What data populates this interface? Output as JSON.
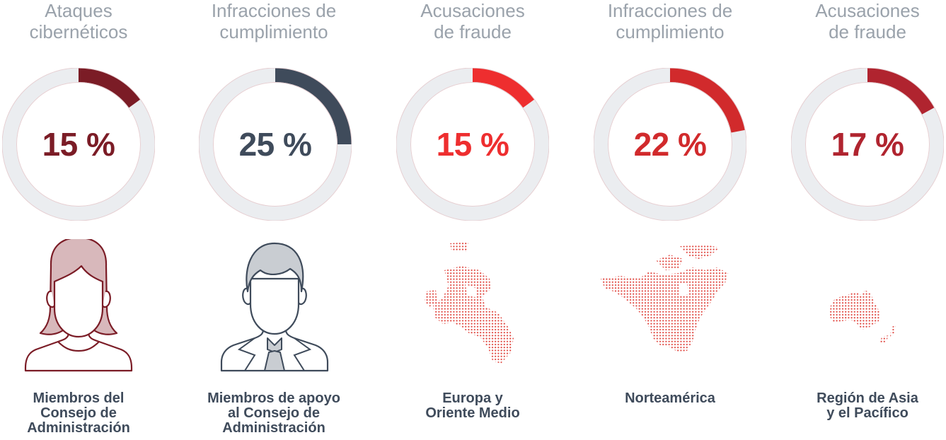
{
  "chart_data": [
    {
      "type": "pie",
      "title": "Ataques\ncibernéticos",
      "value_label": "15 %",
      "values": [
        15,
        85
      ],
      "category": "Miembros del\nConsejo de\nAdministración",
      "color": "#7b1c26"
    },
    {
      "type": "pie",
      "title": "Infracciones de\ncumplimiento",
      "value_label": "25 %",
      "values": [
        25,
        75
      ],
      "category": "Miembros de apoyo\nal Consejo de\nAdministración",
      "color": "#3f4b5b"
    },
    {
      "type": "pie",
      "title": "Acusaciones\nde fraude",
      "value_label": "15 %",
      "values": [
        15,
        85
      ],
      "category": "Europa y\nOriente Medio",
      "color": "#ee2e2f"
    },
    {
      "type": "pie",
      "title": "Infracciones de\ncumplimiento",
      "value_label": "22 %",
      "values": [
        22,
        78
      ],
      "category": "Norteamérica",
      "color": "#d12a2c"
    },
    {
      "type": "pie",
      "title": "Acusaciones\nde fraude",
      "value_label": "17 %",
      "values": [
        17,
        83
      ],
      "category": "Región de Asia\ny el Pacífico",
      "color": "#b0242f"
    }
  ],
  "track_color": "#ebedf0",
  "icons": [
    "woman-board-member-icon",
    "man-board-support-icon",
    "europe-middle-east-map-icon",
    "north-america-map-icon",
    "asia-pacific-map-icon"
  ]
}
